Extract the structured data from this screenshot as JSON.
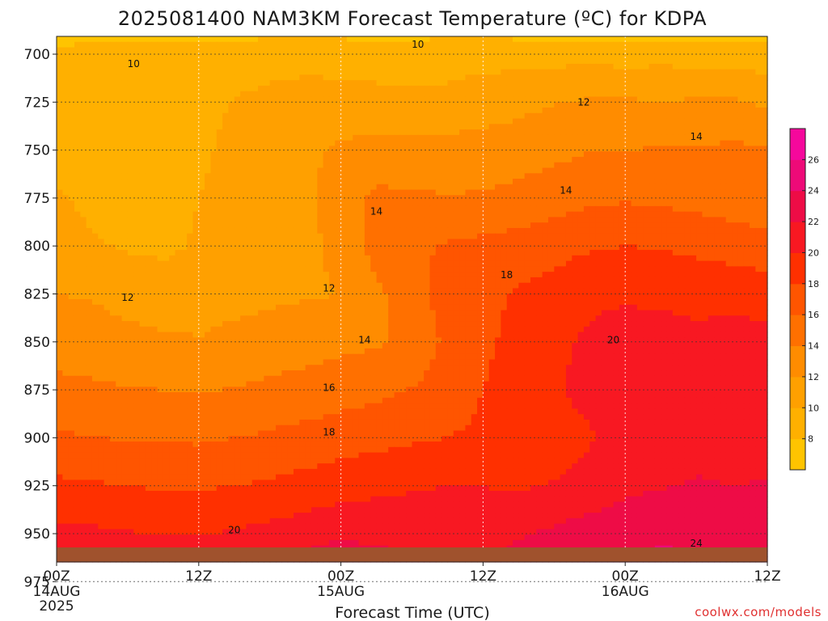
{
  "title": "2025081400 NAM3KM Forecast Temperature (ºC) for KDPA",
  "credit": "coolwx.com/models",
  "chart_data": {
    "type": "heatmap",
    "title": "2025081400 NAM3KM Forecast Temperature (ºC) for KDPA",
    "xlabel": "Forecast Time (UTC)",
    "ylabel": "",
    "x_range_hours": [
      0,
      60
    ],
    "y_range_hpa": [
      690,
      995
    ],
    "y_ticks": [
      700,
      725,
      750,
      775,
      800,
      825,
      850,
      875,
      900,
      925,
      950,
      975
    ],
    "x_ticks": [
      {
        "hour": 0,
        "label": "00Z",
        "date": "14AUG",
        "year": "2025"
      },
      {
        "hour": 12,
        "label": "12Z"
      },
      {
        "hour": 24,
        "label": "00Z",
        "date": "15AUG"
      },
      {
        "hour": 36,
        "label": "12Z"
      },
      {
        "hour": 48,
        "label": "00Z",
        "date": "16AUG"
      },
      {
        "hour": 60,
        "label": "12Z"
      }
    ],
    "grid": true,
    "colorbar": {
      "placement": "right",
      "levels": [
        6,
        8,
        10,
        12,
        14,
        16,
        18,
        20,
        22,
        24,
        26,
        28
      ],
      "tick_labels": [
        8,
        10,
        12,
        14,
        16,
        18,
        20,
        22,
        24,
        26
      ],
      "colors": [
        "#ffc400",
        "#ffb000",
        "#ffa000",
        "#ff8c00",
        "#ff7000",
        "#ff5500",
        "#ff3000",
        "#f81822",
        "#ee0c46",
        "#ee0a78",
        "#f5089c"
      ]
    },
    "ground_color": "#a0522d",
    "surface_pressure_hpa": 986,
    "levels_hpa": [
      690,
      700,
      725,
      750,
      775,
      800,
      825,
      850,
      875,
      900,
      925,
      950,
      975,
      986
    ],
    "hours": [
      0,
      3,
      6,
      9,
      12,
      15,
      18,
      21,
      24,
      27,
      30,
      33,
      36,
      39,
      42,
      45,
      48,
      51,
      54,
      57,
      60
    ],
    "temperature_c": [
      [
        7.5,
        7.6,
        7.8,
        7.6,
        7.4,
        7.6,
        7.8,
        7.9,
        7.7,
        7.5,
        7.6,
        7.8,
        7.8,
        7.6,
        7.5,
        7.6,
        7.5,
        7.6,
        7.5,
        7.4,
        7.2
      ],
      [
        8.4,
        8.5,
        8.6,
        8.6,
        8.6,
        8.9,
        9.1,
        9.2,
        9.2,
        9.1,
        9.0,
        9.1,
        9.3,
        9.3,
        9.3,
        9.3,
        9.2,
        9.3,
        9.2,
        9.0,
        8.8
      ],
      [
        9.0,
        8.9,
        8.9,
        9.0,
        9.5,
        10.1,
        10.6,
        10.9,
        10.8,
        10.6,
        10.5,
        10.6,
        11.0,
        11.4,
        11.9,
        12.2,
        12.2,
        12.1,
        12.2,
        12.3,
        11.7
      ],
      [
        9.4,
        9.2,
        9.0,
        9.2,
        9.7,
        10.4,
        10.9,
        11.6,
        12.3,
        12.8,
        12.8,
        12.7,
        12.9,
        13.1,
        13.5,
        13.9,
        14.0,
        14.1,
        14.1,
        14.4,
        14.2
      ],
      [
        10.2,
        9.6,
        9.4,
        9.4,
        10.0,
        10.6,
        11.2,
        11.6,
        13.1,
        14.4,
        14.3,
        14.1,
        14.2,
        14.6,
        15.1,
        15.6,
        15.8,
        15.6,
        15.3,
        15.0,
        14.9
      ],
      [
        10.8,
        10.2,
        9.8,
        9.6,
        10.2,
        10.8,
        11.2,
        11.5,
        12.5,
        14.8,
        15.6,
        16.2,
        16.5,
        16.8,
        17.3,
        17.8,
        18.0,
        17.9,
        17.5,
        17.0,
        16.5
      ],
      [
        12.0,
        11.8,
        11.2,
        11.0,
        11.2,
        11.4,
        11.6,
        11.8,
        12.0,
        13.5,
        15.3,
        16.8,
        17.5,
        18.2,
        18.8,
        19.5,
        19.6,
        19.4,
        19.5,
        19.6,
        19.3
      ],
      [
        13.2,
        13.0,
        12.6,
        12.3,
        12.1,
        12.5,
        12.9,
        13.2,
        13.5,
        13.8,
        14.3,
        16.5,
        17.6,
        18.6,
        19.5,
        20.4,
        21.2,
        21.1,
        20.4,
        20.6,
        20.4
      ],
      [
        14.5,
        14.3,
        14.1,
        14.0,
        13.8,
        14.1,
        14.4,
        14.7,
        15.1,
        15.5,
        16.1,
        17.1,
        18.0,
        19.0,
        19.8,
        20.6,
        21.5,
        21.4,
        20.6,
        21.0,
        20.9
      ],
      [
        16.3,
        16.0,
        15.9,
        15.8,
        15.7,
        16.0,
        16.3,
        16.7,
        17.1,
        17.4,
        17.7,
        18.0,
        18.3,
        18.7,
        19.1,
        19.8,
        20.8,
        21.5,
        21.6,
        21.4,
        21.3
      ],
      [
        18.4,
        18.2,
        18.0,
        17.8,
        17.8,
        18.0,
        18.3,
        18.7,
        19.1,
        19.5,
        19.8,
        20.0,
        20.0,
        19.8,
        20.1,
        20.8,
        21.6,
        21.9,
        22.1,
        22.0,
        22.1
      ],
      [
        20.6,
        20.4,
        20.1,
        19.9,
        19.9,
        20.2,
        20.6,
        21.1,
        21.6,
        21.4,
        21.3,
        21.0,
        20.7,
        21.7,
        22.4,
        22.9,
        23.2,
        23.5,
        23.6,
        23.3,
        23.0
      ],
      [
        22.4,
        22.0,
        21.6,
        21.4,
        21.6,
        22.3,
        23.1,
        23.8,
        24.5,
        23.8,
        22.9,
        22.7,
        22.6,
        23.8,
        24.7,
        25.3,
        25.5,
        25.2,
        24.8,
        24.5,
        23.8
      ],
      [
        23.0,
        22.6,
        22.4,
        22.2,
        22.5,
        23.4,
        24.5,
        25.5,
        26.2,
        25.0,
        23.4,
        23.0,
        23.1,
        24.6,
        25.6,
        26.3,
        26.5,
        26.0,
        25.2,
        24.8,
        24.2
      ]
    ]
  }
}
